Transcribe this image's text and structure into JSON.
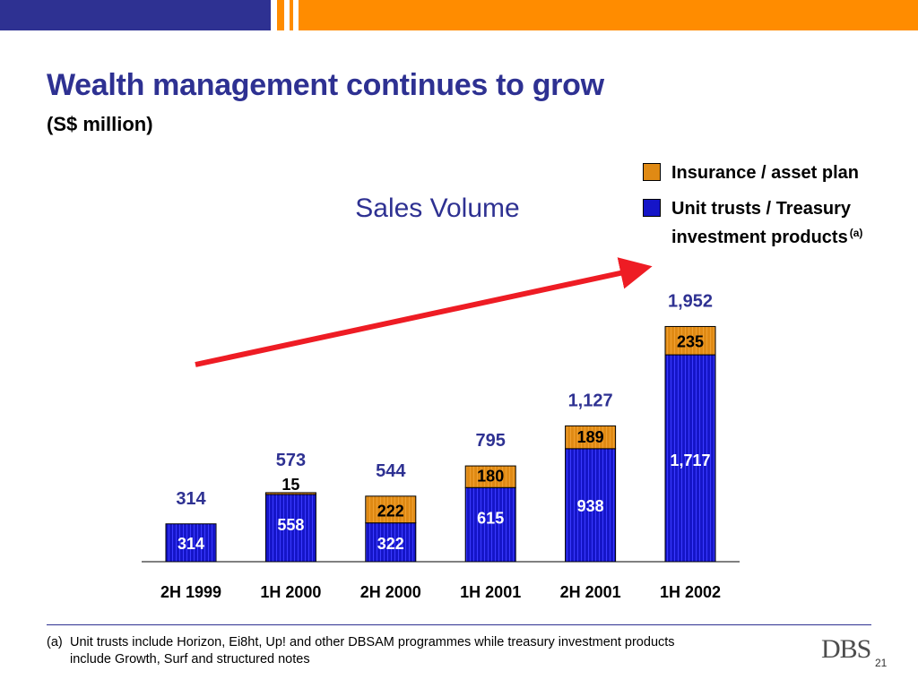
{
  "page": {
    "title": "Wealth management continues to grow",
    "subtitle": "(S$ million)",
    "footnote_marker": "(a)",
    "footnote_line1": "Unit trusts include Horizon, Ei8ht, Up! and other DBSAM programmes while treasury investment products",
    "footnote_line2": "include Growth, Surf and structured notes",
    "logo_text": "DBS",
    "page_number": "21"
  },
  "colors": {
    "brand_navy": "#2e3192",
    "brand_orange": "#ff8c00",
    "bar_blue": "#1515c8",
    "bar_orange": "#e08a14",
    "arrow_red": "#ee1c24"
  },
  "legend": [
    {
      "label": "Insurance / asset plan",
      "sup": "",
      "color": "#e08a14"
    },
    {
      "label_line1": "Unit trusts / Treasury",
      "label_line2": "investment products",
      "sup": "(a)",
      "color": "#1515c8"
    }
  ],
  "chart_data": {
    "type": "bar",
    "stacked": true,
    "title": "Sales Volume",
    "xlabel": "",
    "ylabel": "",
    "ylim": [
      0,
      2000
    ],
    "categories": [
      "2H 1999",
      "1H 2000",
      "2H 2000",
      "1H 2001",
      "2H 2001",
      "1H 2002"
    ],
    "series": [
      {
        "name": "Unit trusts / Treasury investment products",
        "values": [
          314,
          558,
          322,
          615,
          938,
          1717
        ],
        "labels": [
          "314",
          "558",
          "322",
          "615",
          "938",
          "1,717"
        ]
      },
      {
        "name": "Insurance / asset plan",
        "values": [
          0,
          15,
          222,
          180,
          189,
          235
        ],
        "labels": [
          "",
          "15",
          "222",
          "180",
          "189",
          "235"
        ]
      }
    ],
    "totals": [
      "314",
      "573",
      "544",
      "795",
      "1,127",
      "1,952"
    ],
    "legend_position": "top-right",
    "grid": false,
    "annotation": "upward trend arrow"
  }
}
